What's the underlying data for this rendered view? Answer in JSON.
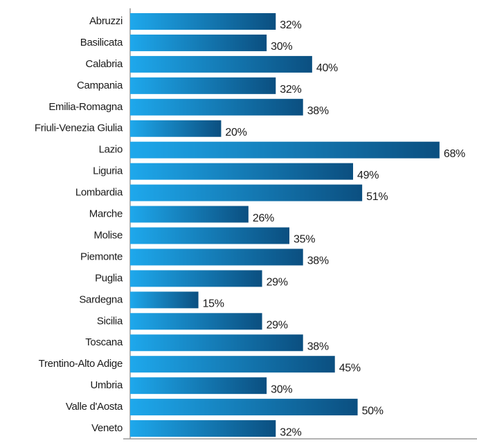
{
  "chart_data": {
    "type": "bar",
    "orientation": "horizontal",
    "categories": [
      "Abruzzi",
      "Basilicata",
      "Calabria",
      "Campania",
      "Emilia-Romagna",
      "Friuli-Venezia Giulia",
      "Lazio",
      "Liguria",
      "Lombardia",
      "Marche",
      "Molise",
      "Piemonte",
      "Puglia",
      "Sardegna",
      "Sicilia",
      "Toscana",
      "Trentino-Alto Adige",
      "Umbria",
      "Valle d'Aosta",
      "Veneto"
    ],
    "values": [
      32,
      30,
      40,
      32,
      38,
      20,
      68,
      49,
      51,
      26,
      35,
      38,
      29,
      15,
      29,
      38,
      45,
      30,
      50,
      32
    ],
    "value_labels": [
      "32%",
      "30%",
      "40%",
      "32%",
      "38%",
      "20%",
      "68%",
      "49%",
      "51%",
      "26%",
      "35%",
      "38%",
      "29%",
      "15%",
      "29%",
      "38%",
      "45%",
      "30%",
      "50%",
      "32%"
    ],
    "color": [
      "#1ea8ec",
      "#0b4f80"
    ],
    "xlim": [
      0,
      70
    ]
  }
}
